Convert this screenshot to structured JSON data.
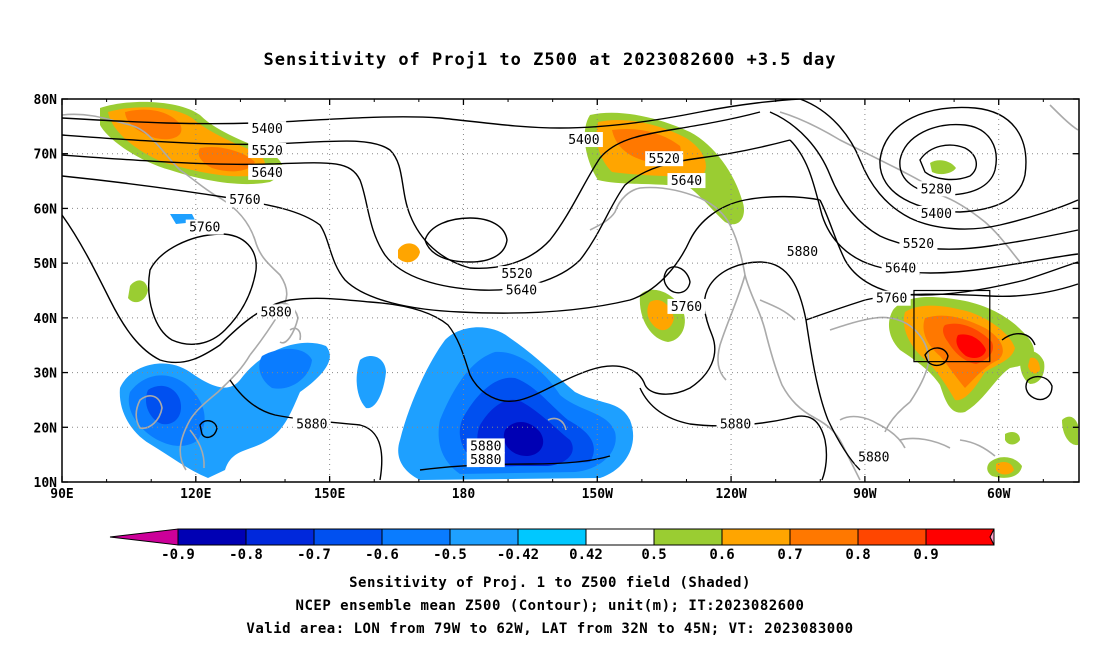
{
  "title": "Sensitivity of Proj1 to Z500 at 2023082600 +3.5 day",
  "lat_labels": [
    "80N",
    "70N",
    "60N",
    "50N",
    "40N",
    "30N",
    "20N",
    "10N"
  ],
  "lon_labels": [
    "90E",
    "120E",
    "150E",
    "180",
    "150W",
    "120W",
    "90W",
    "60W"
  ],
  "contour_labels": [
    {
      "text": "5400",
      "lon": 136,
      "lat": 74.5
    },
    {
      "text": "5520",
      "lon": 136,
      "lat": 70.5
    },
    {
      "text": "5640",
      "lon": 136,
      "lat": 66.5
    },
    {
      "text": "5760",
      "lon": 131,
      "lat": 61.5
    },
    {
      "text": "5760",
      "lon": 122,
      "lat": 56.5
    },
    {
      "text": "5880",
      "lon": 138,
      "lat": 41
    },
    {
      "text": "5880",
      "lon": 146,
      "lat": 20.5
    },
    {
      "text": "5400",
      "lon": -153,
      "lat": 72.5
    },
    {
      "text": "5520",
      "lon": -135,
      "lat": 69
    },
    {
      "text": "5640",
      "lon": -130,
      "lat": 65
    },
    {
      "text": "5520",
      "lon": -168,
      "lat": 48
    },
    {
      "text": "5640",
      "lon": -167,
      "lat": 45
    },
    {
      "text": "5760",
      "lon": -130,
      "lat": 42
    },
    {
      "text": "5880",
      "lon": -104,
      "lat": 52
    },
    {
      "text": "5880",
      "lon": -119,
      "lat": 20.5
    },
    {
      "text": "5880",
      "lon": -88,
      "lat": 14.5
    },
    {
      "text": "5880",
      "lon": -175,
      "lat": 16.5
    },
    {
      "text": "5880",
      "lon": -175,
      "lat": 14
    },
    {
      "text": "5280",
      "lon": -74,
      "lat": 63.5
    },
    {
      "text": "5400",
      "lon": -74,
      "lat": 59
    },
    {
      "text": "5520",
      "lon": -78,
      "lat": 53.5
    },
    {
      "text": "5640",
      "lon": -82,
      "lat": 49
    },
    {
      "text": "5760",
      "lon": -84,
      "lat": 43.5
    }
  ],
  "colorbar": {
    "labels": [
      "-0.9",
      "-0.8",
      "-0.7",
      "-0.6",
      "-0.5",
      "-0.42",
      "0.42",
      "0.5",
      "0.6",
      "0.7",
      "0.8",
      "0.9"
    ],
    "colors": [
      "#cc0099",
      "#0000b4",
      "#0028dc",
      "#0050f0",
      "#0a7cff",
      "#1ea0ff",
      "#00c8ff",
      "#ffffff",
      "#9acd32",
      "#ffa500",
      "#ff7800",
      "#ff4600",
      "#ff0000",
      "#ff9ec8"
    ]
  },
  "valid_area": {
    "lon_min": -79,
    "lon_max": -62,
    "lat_min": 32,
    "lat_max": 45
  },
  "footer": {
    "line1": "Sensitivity of Proj. 1 to Z500 field (Shaded)",
    "line2": "NCEP ensemble mean Z500 (Contour); unit(m); IT:2023082600",
    "line3": "Valid area: LON from 79W to 62W, LAT from 32N to 45N; VT: 2023083000"
  }
}
